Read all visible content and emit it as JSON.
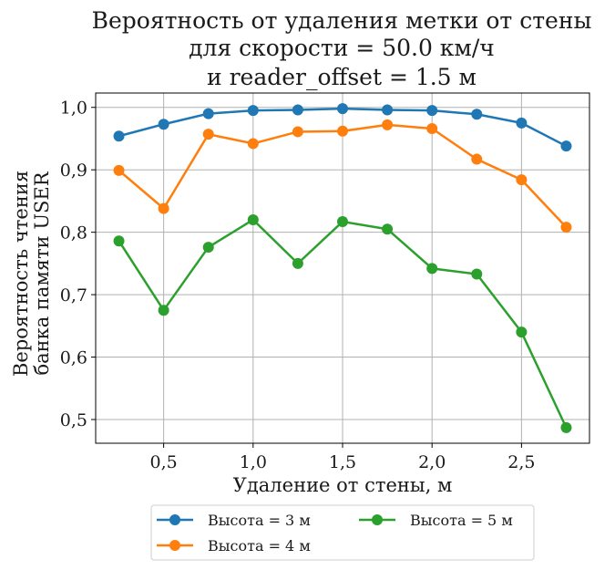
{
  "chart_data": {
    "type": "line",
    "title_lines": [
      "Вероятность от удаления метки от стены",
      "для скорости = 50.0 км/ч",
      "и reader_offset = 1.5 м"
    ],
    "xlabel": "Удаление от стены, м",
    "ylabel_lines": [
      "Вероятность чтения",
      "банка памяти USER"
    ],
    "x": [
      0.25,
      0.5,
      0.75,
      1.0,
      1.25,
      1.5,
      1.75,
      2.0,
      2.25,
      2.5,
      2.75
    ],
    "xlim": [
      0.12,
      2.88
    ],
    "ylim": [
      0.462,
      1.023
    ],
    "xticks": [
      0.5,
      1.0,
      1.5,
      2.0,
      2.5
    ],
    "xtick_labels": [
      "0,5",
      "1,0",
      "1,5",
      "2,0",
      "2,5"
    ],
    "yticks": [
      0.5,
      0.6,
      0.7,
      0.8,
      0.9,
      1.0
    ],
    "ytick_labels": [
      "0,5",
      "0,6",
      "0,7",
      "0,8",
      "0,9",
      "1,0"
    ],
    "grid": true,
    "legend_position": "bottom-center",
    "series": [
      {
        "name": "Высота = 3 м",
        "color": "#1f77b4",
        "values": [
          0.954,
          0.973,
          0.99,
          0.995,
          0.996,
          0.998,
          0.996,
          0.995,
          0.989,
          0.975,
          0.938
        ]
      },
      {
        "name": "Высота = 4 м",
        "color": "#ff7f0e",
        "values": [
          0.899,
          0.838,
          0.957,
          0.942,
          0.961,
          0.962,
          0.972,
          0.966,
          0.917,
          0.884,
          0.808
        ]
      },
      {
        "name": "Высота = 5 м",
        "color": "#2ca02c",
        "values": [
          0.786,
          0.675,
          0.776,
          0.82,
          0.75,
          0.817,
          0.805,
          0.742,
          0.733,
          0.64,
          0.487
        ]
      }
    ]
  }
}
